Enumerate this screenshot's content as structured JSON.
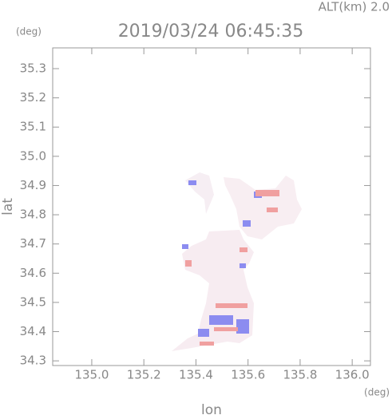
{
  "chart_data": {
    "type": "map",
    "title": "2019/03/24 06:45:35",
    "subtitle": "ALT(km) 2.0",
    "y_unit": "(deg)",
    "x_unit": "(deg)",
    "x_label": "lon",
    "y_label": "lat",
    "xlim": [
      134.85,
      136.07
    ],
    "ylim": [
      34.284,
      35.371
    ],
    "xticks": [
      {
        "value": 135.0,
        "label": "135.0"
      },
      135.2,
      135.4,
      135.6,
      135.8,
      {
        "value": 136.0,
        "label": "136.0"
      }
    ],
    "yticks": [
      34.3,
      34.4,
      34.5,
      34.6,
      34.7,
      34.8,
      34.9,
      {
        "value": 35.0,
        "label": "35.0"
      },
      35.1,
      35.2,
      35.3
    ]
  }
}
